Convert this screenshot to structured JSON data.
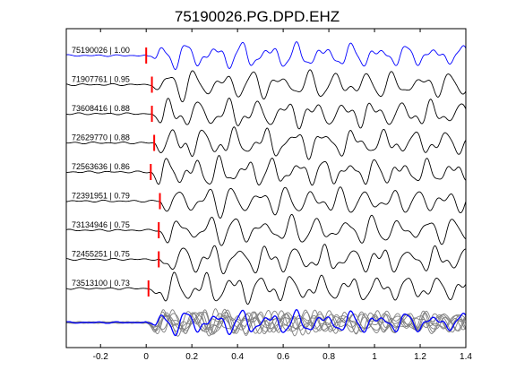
{
  "chart_data": {
    "type": "line",
    "title": "75190026.PG.DPD.EHZ",
    "xlabel": "",
    "ylabel": "",
    "xlim": [
      -0.35,
      1.4
    ],
    "x_ticks": [
      -0.2,
      0,
      0.2,
      0.4,
      0.6,
      0.8,
      1,
      1.2,
      1.4
    ],
    "x_tick_labels": [
      "-0.2",
      "0",
      "0.2",
      "0.4",
      "0.6",
      "0.8",
      "1",
      "1.2",
      "1.4"
    ],
    "grid": false,
    "traces": [
      {
        "label": "75190026 | 1.00",
        "pick_time": 0.0,
        "color": "#0000ff",
        "seed": 1
      },
      {
        "label": "71907761 | 0.95",
        "pick_time": 0.025,
        "color": "#000000",
        "seed": 2
      },
      {
        "label": "73608416 | 0.88",
        "pick_time": 0.025,
        "color": "#000000",
        "seed": 3
      },
      {
        "label": "72629770 | 0.88",
        "pick_time": 0.035,
        "color": "#000000",
        "seed": 4
      },
      {
        "label": "72563636 | 0.86",
        "pick_time": 0.02,
        "color": "#000000",
        "seed": 5
      },
      {
        "label": "72391951 | 0.79",
        "pick_time": 0.06,
        "color": "#000000",
        "seed": 6
      },
      {
        "label": "73134946 | 0.75",
        "pick_time": 0.055,
        "color": "#000000",
        "seed": 7
      },
      {
        "label": "72455251 | 0.75",
        "pick_time": 0.055,
        "color": "#000000",
        "seed": 8
      },
      {
        "label": "73513100 | 0.73",
        "pick_time": 0.01,
        "color": "#000000",
        "seed": 9
      }
    ],
    "stack": {
      "color_template": "#0000ff",
      "color_others": "#808080"
    },
    "pick_marker_color": "#ff0000"
  }
}
